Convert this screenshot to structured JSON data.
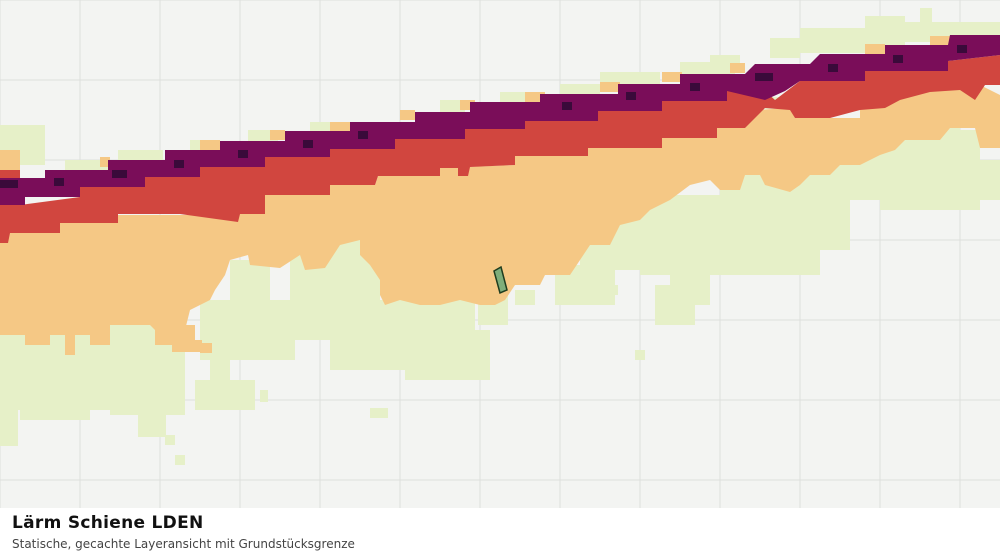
{
  "map": {
    "layer_name": "Lärm Schiene LDEN",
    "description": "Statische, gecachte Layeransicht mit Grundstücksgrenze",
    "colors": {
      "background": "#f3f4f2",
      "grid": "#dedfdc",
      "class_1": "#e6f0c8",
      "class_2": "#f5c885",
      "class_3": "#d1463f",
      "class_4": "#7a0d59",
      "class_5": "#3a0a3a",
      "parcel_fill": "#7fae7a",
      "parcel_stroke": "#1f3d1f"
    }
  }
}
